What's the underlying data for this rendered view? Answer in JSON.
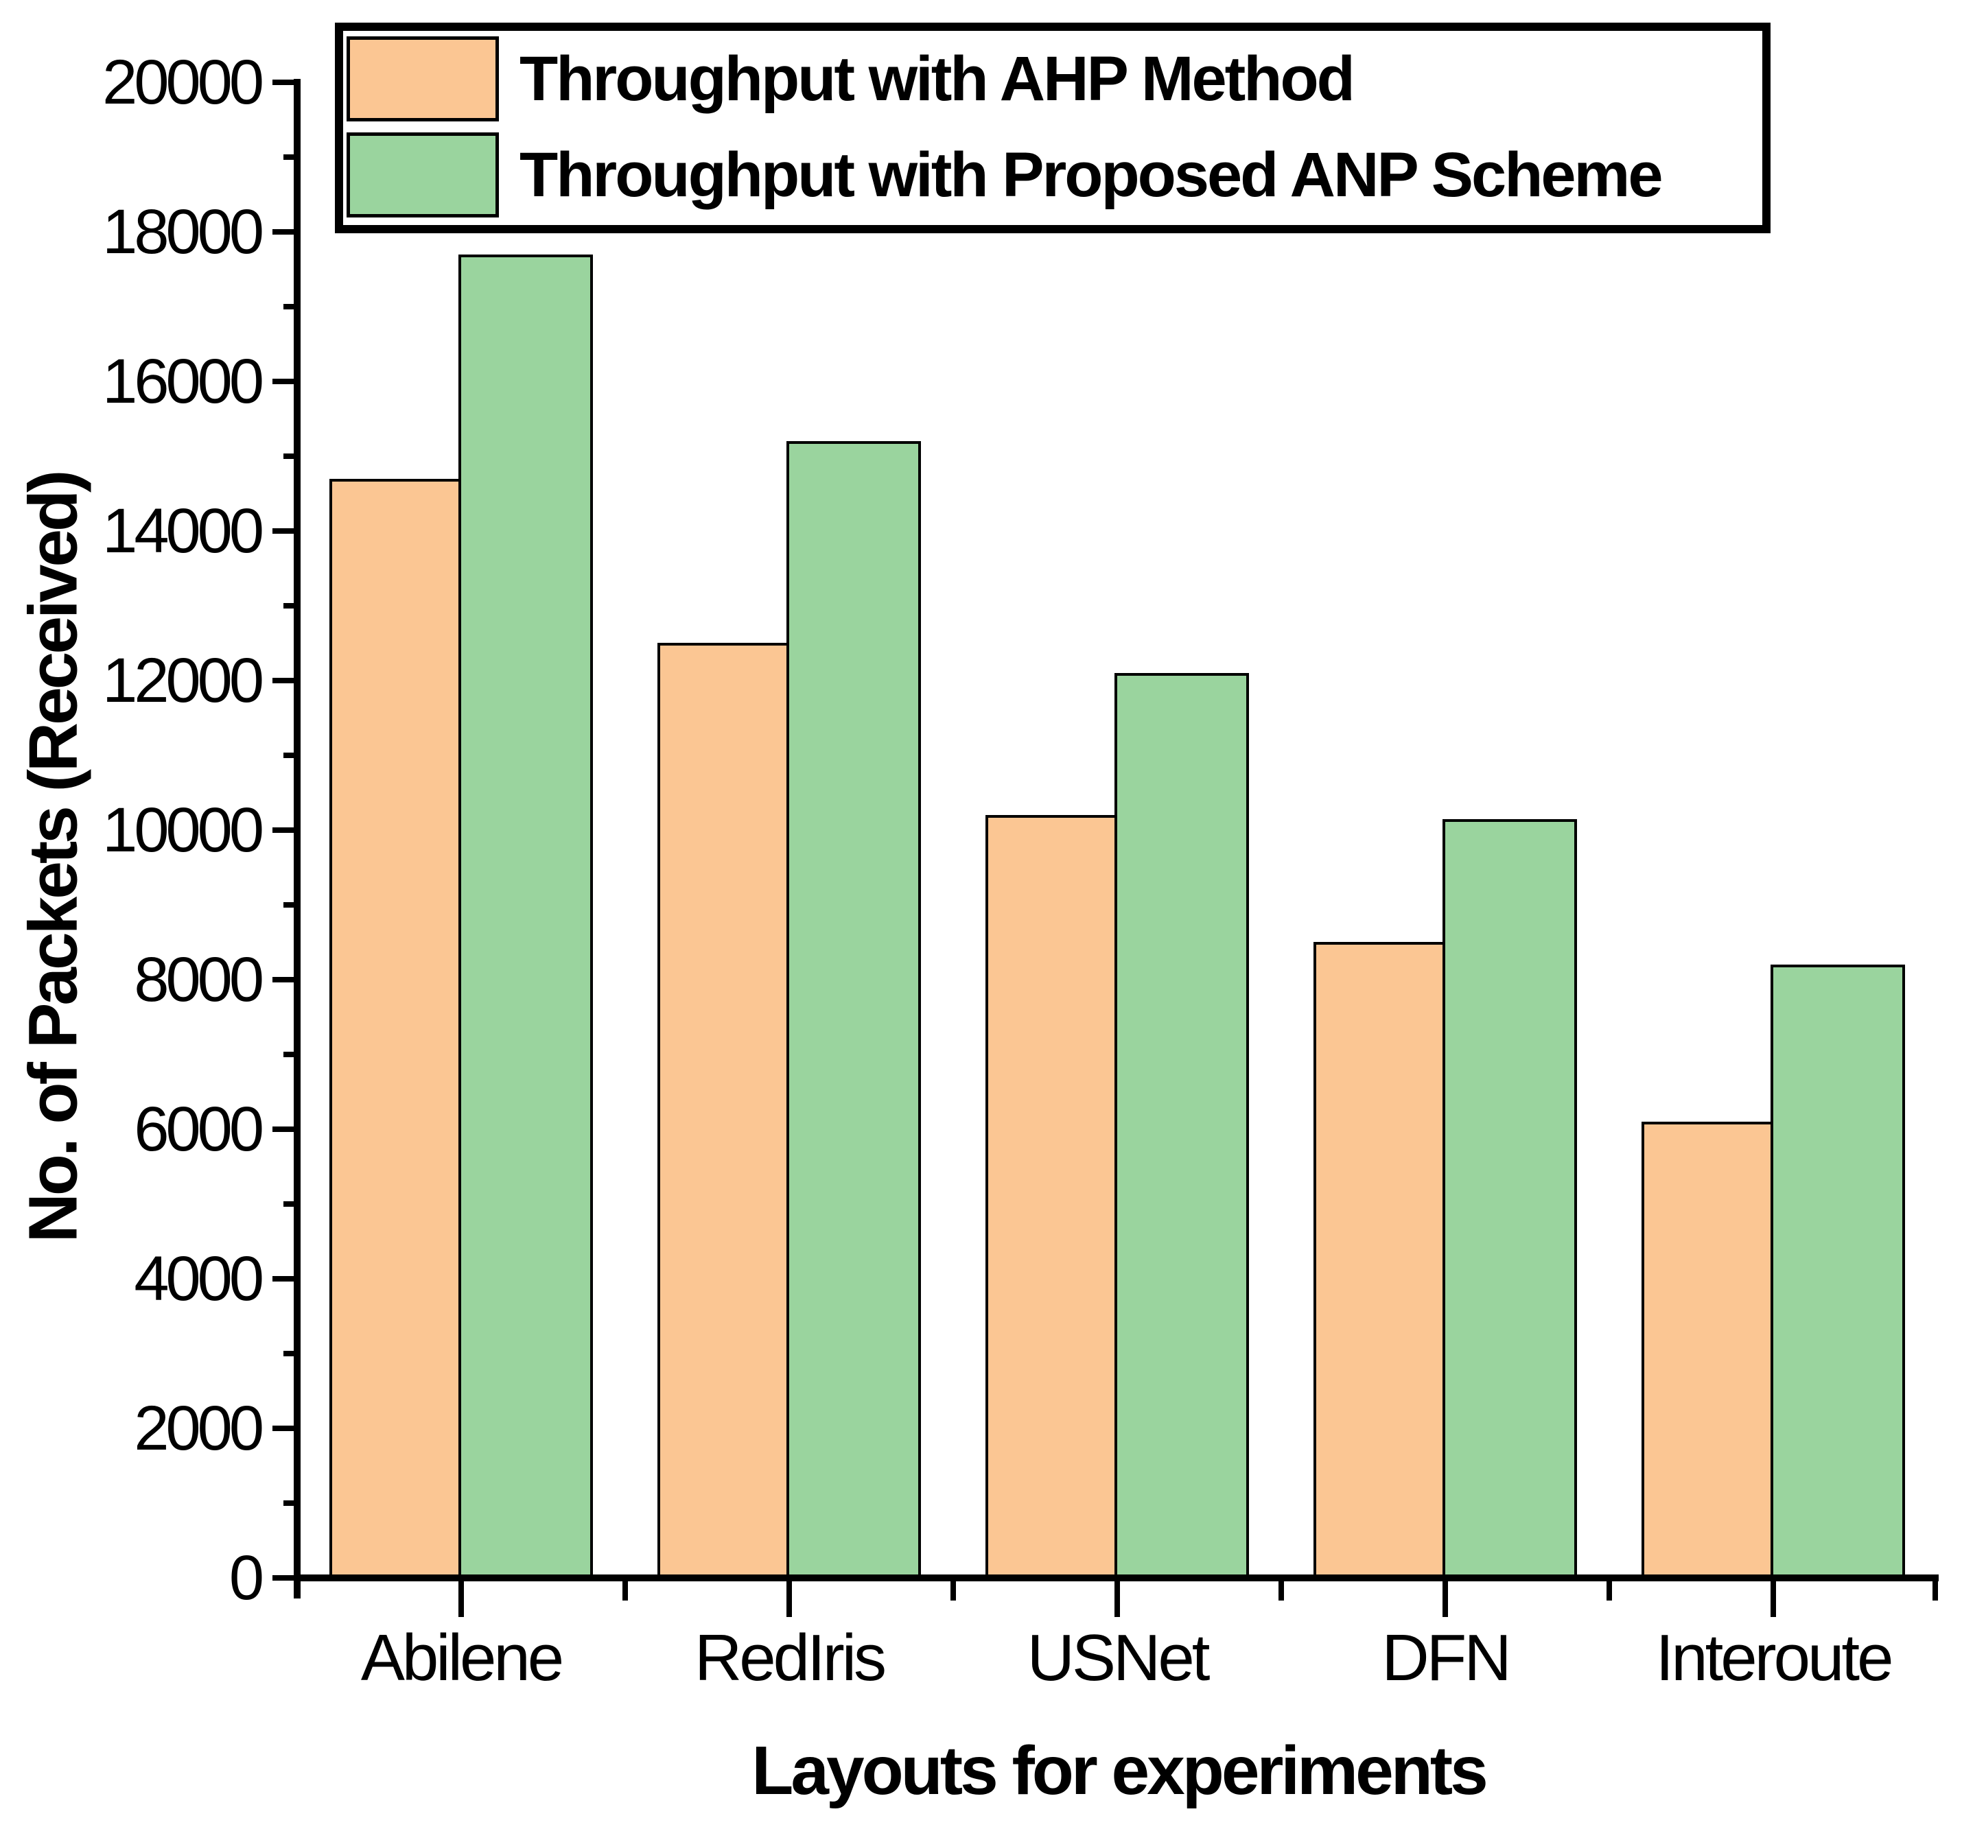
{
  "chart_data": {
    "type": "bar",
    "title": "",
    "categories": [
      "Abilene",
      "RedIris",
      "USNet",
      "DFN",
      "Interoute"
    ],
    "series": [
      {
        "name": "Throughput with AHP Method",
        "color": "#FBC693",
        "values": [
          14700,
          12500,
          10200,
          8500,
          6100
        ]
      },
      {
        "name": "Throughput with Proposed ANP Scheme",
        "color": "#9AD49E",
        "values": [
          17700,
          15200,
          12100,
          10150,
          8200
        ]
      }
    ],
    "xlabel": "Layouts for experiments",
    "ylabel": "No. of Packets (Received)",
    "ylim": [
      0,
      20000
    ],
    "y_major_step": 2000,
    "y_minor_step": 1000,
    "y_major_tick_labels": [
      "0",
      "2000",
      "4000",
      "6000",
      "8000",
      "10000",
      "12000",
      "14000",
      "16000",
      "18000",
      "20000"
    ],
    "grid": false,
    "legend_position": "top-left-inside",
    "bar_border_color": "#000000",
    "axis_color": "#000000",
    "text_color": "#000000"
  }
}
